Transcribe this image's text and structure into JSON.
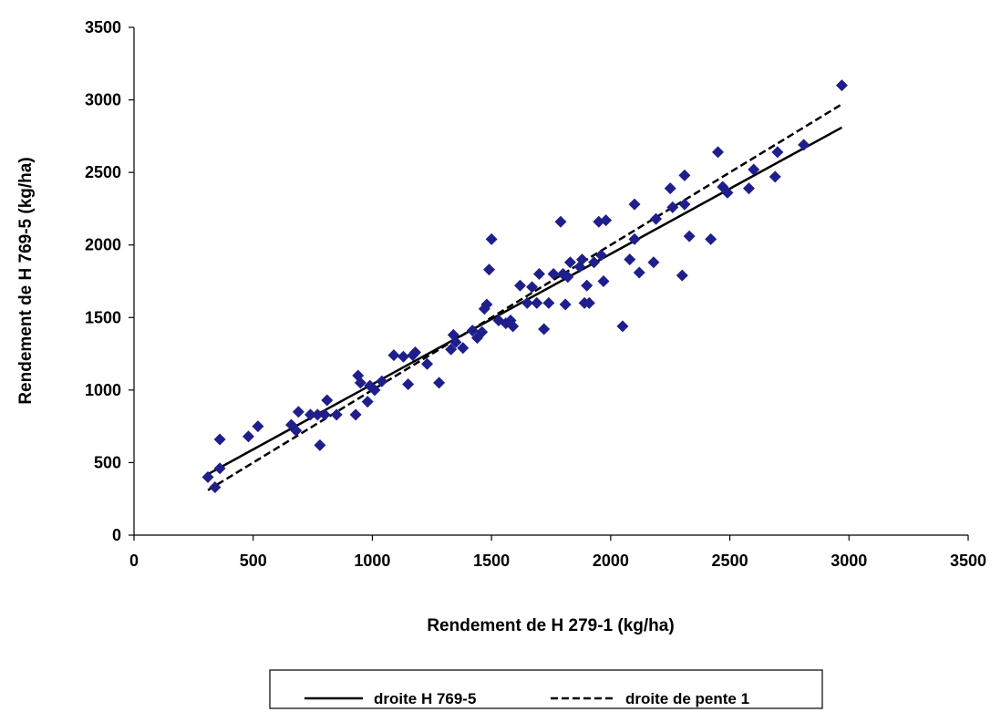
{
  "chart_data": {
    "type": "scatter",
    "title": "",
    "xlabel": "Rendement de H 279-1 (kg/ha)",
    "ylabel": "Rendement de H 769-5 (kg/ha)",
    "xlim": [
      0,
      3500
    ],
    "ylim": [
      0,
      3500
    ],
    "xticks": [
      0,
      500,
      1000,
      1500,
      2000,
      2500,
      3000,
      3500
    ],
    "yticks": [
      0,
      500,
      1000,
      1500,
      2000,
      2500,
      3000,
      3500
    ],
    "grid": false,
    "legend_position": "bottom",
    "marker_color": "#1F1F8C",
    "points": [
      [
        310,
        400
      ],
      [
        340,
        330
      ],
      [
        360,
        460
      ],
      [
        360,
        660
      ],
      [
        480,
        680
      ],
      [
        520,
        750
      ],
      [
        660,
        760
      ],
      [
        680,
        720
      ],
      [
        690,
        850
      ],
      [
        740,
        830
      ],
      [
        770,
        830
      ],
      [
        780,
        620
      ],
      [
        800,
        830
      ],
      [
        810,
        930
      ],
      [
        850,
        830
      ],
      [
        930,
        830
      ],
      [
        940,
        1100
      ],
      [
        950,
        1050
      ],
      [
        980,
        920
      ],
      [
        990,
        1030
      ],
      [
        1010,
        1000
      ],
      [
        1040,
        1060
      ],
      [
        1090,
        1240
      ],
      [
        1130,
        1230
      ],
      [
        1150,
        1040
      ],
      [
        1170,
        1240
      ],
      [
        1180,
        1260
      ],
      [
        1230,
        1180
      ],
      [
        1280,
        1050
      ],
      [
        1330,
        1280
      ],
      [
        1340,
        1380
      ],
      [
        1350,
        1330
      ],
      [
        1380,
        1290
      ],
      [
        1420,
        1410
      ],
      [
        1440,
        1360
      ],
      [
        1460,
        1400
      ],
      [
        1470,
        1560
      ],
      [
        1480,
        1590
      ],
      [
        1490,
        1830
      ],
      [
        1500,
        2040
      ],
      [
        1530,
        1480
      ],
      [
        1560,
        1460
      ],
      [
        1580,
        1480
      ],
      [
        1590,
        1440
      ],
      [
        1620,
        1720
      ],
      [
        1650,
        1600
      ],
      [
        1670,
        1710
      ],
      [
        1690,
        1600
      ],
      [
        1700,
        1800
      ],
      [
        1720,
        1420
      ],
      [
        1740,
        1600
      ],
      [
        1760,
        1800
      ],
      [
        1790,
        2160
      ],
      [
        1800,
        1800
      ],
      [
        1810,
        1590
      ],
      [
        1820,
        1780
      ],
      [
        1830,
        1880
      ],
      [
        1870,
        1850
      ],
      [
        1880,
        1900
      ],
      [
        1890,
        1600
      ],
      [
        1900,
        1720
      ],
      [
        1910,
        1600
      ],
      [
        1930,
        1880
      ],
      [
        1950,
        2160
      ],
      [
        1960,
        1930
      ],
      [
        1970,
        1750
      ],
      [
        1980,
        2170
      ],
      [
        2050,
        1440
      ],
      [
        2080,
        1900
      ],
      [
        2100,
        2280
      ],
      [
        2100,
        2040
      ],
      [
        2120,
        1810
      ],
      [
        2180,
        1880
      ],
      [
        2190,
        2180
      ],
      [
        2250,
        2390
      ],
      [
        2260,
        2260
      ],
      [
        2300,
        1790
      ],
      [
        2310,
        2480
      ],
      [
        2310,
        2280
      ],
      [
        2330,
        2060
      ],
      [
        2420,
        2040
      ],
      [
        2450,
        2640
      ],
      [
        2470,
        2400
      ],
      [
        2490,
        2360
      ],
      [
        2580,
        2390
      ],
      [
        2600,
        2520
      ],
      [
        2690,
        2470
      ],
      [
        2700,
        2640
      ],
      [
        2810,
        2690
      ],
      [
        2970,
        3100
      ]
    ],
    "series": [
      {
        "name": "droite H 769-5",
        "type": "line",
        "style": "solid",
        "color": "#000000",
        "x": [
          310,
          2970
        ],
        "y": [
          420,
          2810
        ]
      },
      {
        "name": "droite de pente 1",
        "type": "line",
        "style": "dashed",
        "color": "#000000",
        "x": [
          310,
          2970
        ],
        "y": [
          310,
          2970
        ]
      }
    ]
  }
}
